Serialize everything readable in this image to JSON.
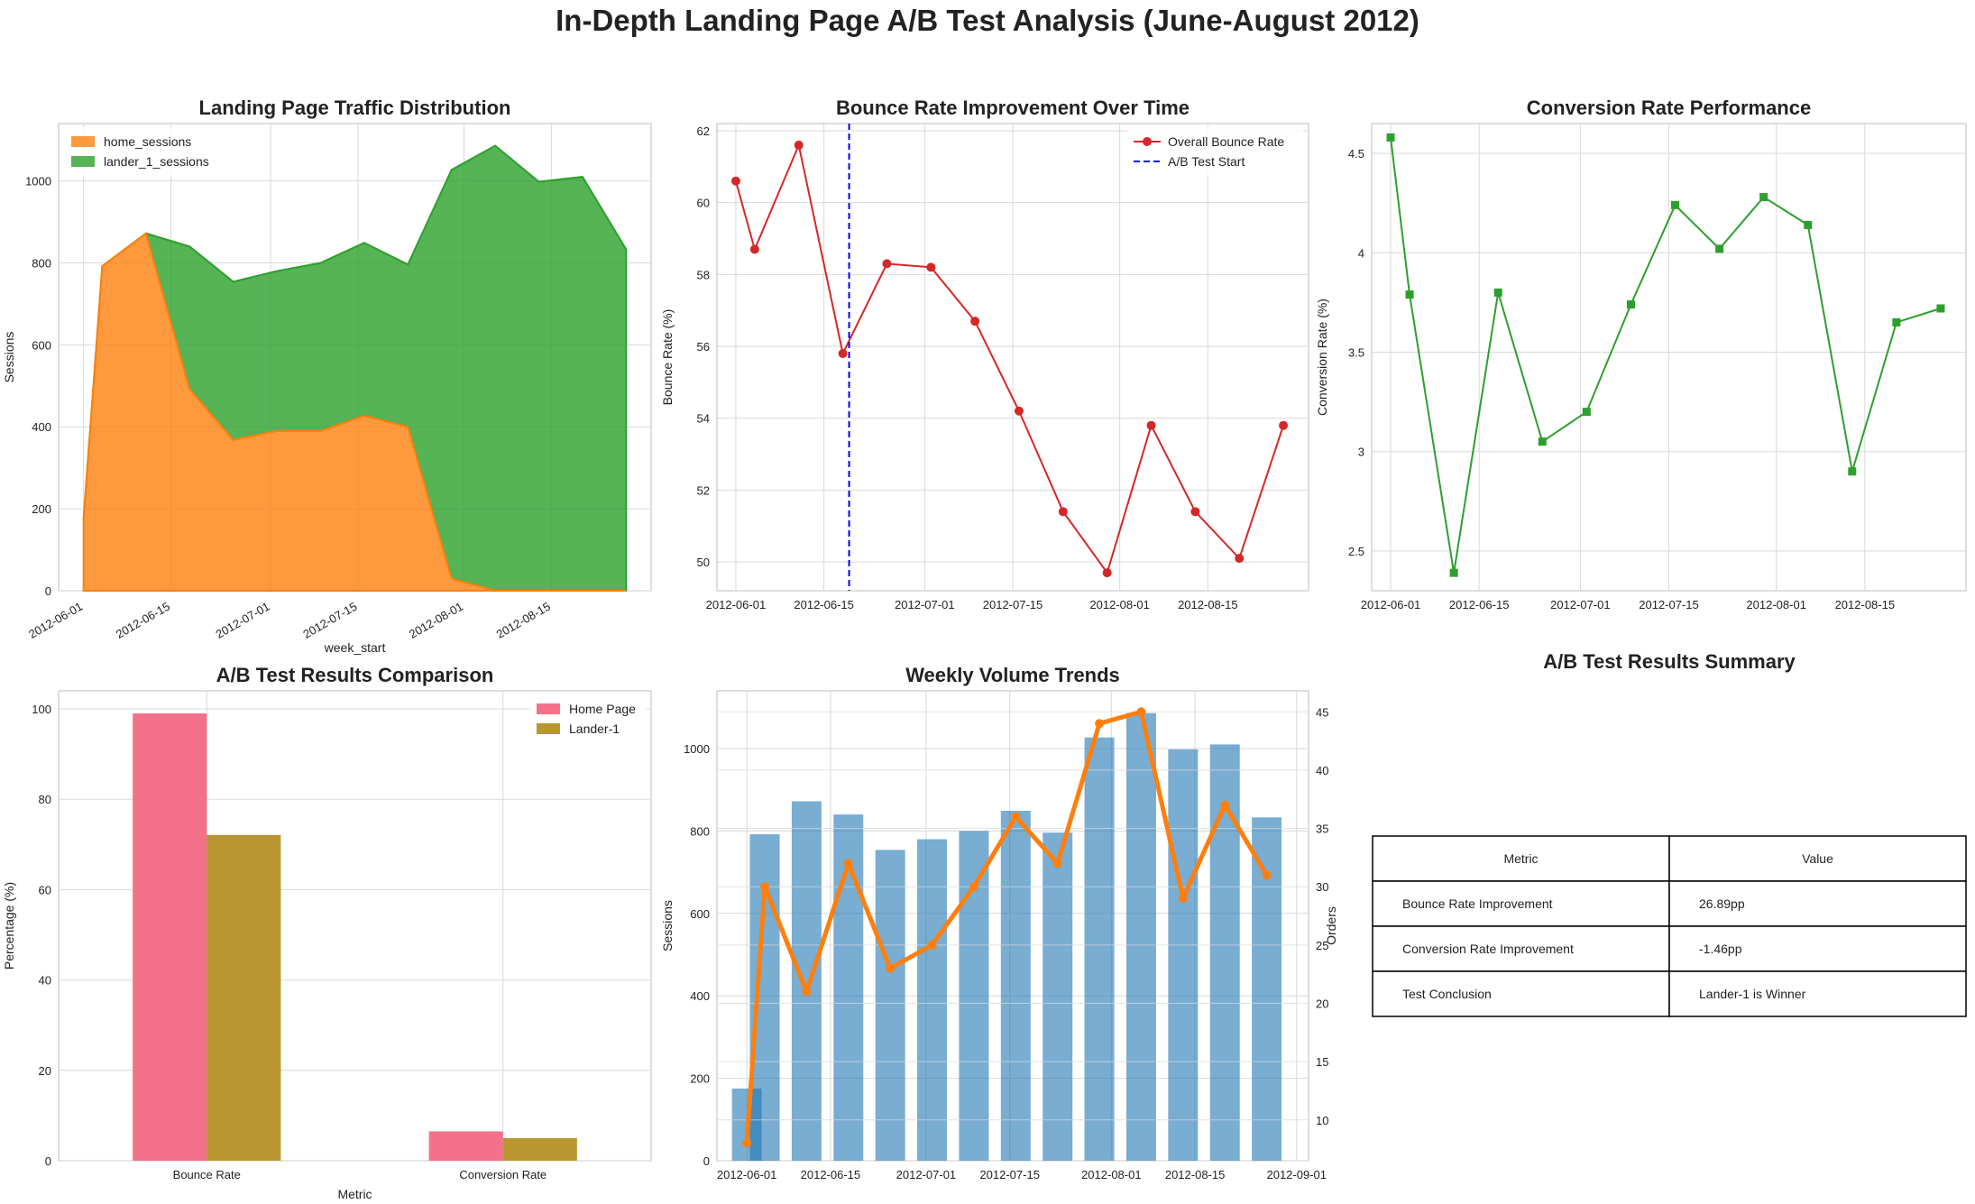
{
  "page": {
    "title": "In-Depth Landing Page A/B Test Analysis (June-August 2012)"
  },
  "colors": {
    "home": "#ff7f0e",
    "lander": "#2ca02c",
    "bounce_line": "#d62728",
    "ab_start": "#0000ff",
    "conversion_line": "#2ca02c",
    "home_bar": "#f3728a",
    "lander_bar": "#b9962f",
    "sessions_bar": "#1f77b4",
    "orders_line": "#ff7f0e",
    "grid": "#d9d9d9",
    "axis": "#c8c8c8"
  },
  "chart_data": [
    {
      "id": "traffic",
      "type": "area",
      "title": "Landing Page Traffic Distribution",
      "xlabel": "week_start",
      "ylabel": "Sessions",
      "stacked": true,
      "legend_position": "top-left",
      "grid": true,
      "x": [
        "2012-06-01",
        "2012-06-04",
        "2012-06-11",
        "2012-06-18",
        "2012-06-25",
        "2012-07-02",
        "2012-07-09",
        "2012-07-16",
        "2012-07-23",
        "2012-07-30",
        "2012-08-06",
        "2012-08-13",
        "2012-08-20",
        "2012-08-27"
      ],
      "series": [
        {
          "name": "home_sessions",
          "values": [
            175,
            792,
            872,
            492,
            368,
            390,
            390,
            427,
            400,
            30,
            0,
            0,
            0,
            0
          ]
        },
        {
          "name": "lander_1_sessions",
          "values": [
            0,
            0,
            0,
            348,
            386,
            390,
            410,
            422,
            396,
            997,
            1086,
            998,
            1010,
            833
          ]
        }
      ],
      "xticks": [
        "2012-06-01",
        "2012-06-15",
        "2012-07-01",
        "2012-07-15",
        "2012-08-01",
        "2012-08-15"
      ],
      "yticks": [
        0,
        200,
        400,
        600,
        800,
        1000
      ],
      "ylim": [
        0,
        1140
      ]
    },
    {
      "id": "bounce",
      "type": "line",
      "title": "Bounce Rate Improvement Over Time",
      "ylabel": "Bounce Rate (%)",
      "legend_position": "top-right",
      "grid": true,
      "x": [
        "2012-06-01",
        "2012-06-04",
        "2012-06-11",
        "2012-06-18",
        "2012-06-25",
        "2012-07-02",
        "2012-07-09",
        "2012-07-16",
        "2012-07-23",
        "2012-07-30",
        "2012-08-06",
        "2012-08-13",
        "2012-08-20",
        "2012-08-27"
      ],
      "series": [
        {
          "name": "Overall Bounce Rate",
          "values": [
            60.6,
            58.7,
            61.6,
            55.8,
            58.3,
            58.2,
            56.7,
            54.2,
            51.4,
            49.7,
            53.8,
            51.4,
            50.1,
            53.8
          ]
        }
      ],
      "vline": {
        "label": "A/B Test Start",
        "x": "2012-06-19"
      },
      "xticks": [
        "2012-06-01",
        "2012-06-15",
        "2012-07-01",
        "2012-07-15",
        "2012-08-01",
        "2012-08-15"
      ],
      "yticks": [
        50,
        52,
        54,
        56,
        58,
        60,
        62
      ],
      "ylim": [
        49.2,
        62.2
      ]
    },
    {
      "id": "conversion",
      "type": "line",
      "title": "Conversion Rate Performance",
      "ylabel": "Conversion Rate (%)",
      "grid": true,
      "x": [
        "2012-06-01",
        "2012-06-04",
        "2012-06-11",
        "2012-06-18",
        "2012-06-25",
        "2012-07-02",
        "2012-07-09",
        "2012-07-16",
        "2012-07-23",
        "2012-07-30",
        "2012-08-06",
        "2012-08-13",
        "2012-08-20",
        "2012-08-27"
      ],
      "series": [
        {
          "name": "",
          "values": [
            4.58,
            3.79,
            2.39,
            3.8,
            3.05,
            3.2,
            3.74,
            4.24,
            4.02,
            4.28,
            4.14,
            2.9,
            3.65,
            3.72
          ]
        }
      ],
      "xticks": [
        "2012-06-01",
        "2012-06-15",
        "2012-07-01",
        "2012-07-15",
        "2012-08-01",
        "2012-08-15"
      ],
      "yticks": [
        2.5,
        3.0,
        3.5,
        4.0,
        4.5
      ],
      "ylim": [
        2.3,
        4.65
      ]
    },
    {
      "id": "abcompare",
      "type": "bar",
      "title": "A/B Test Results Comparison",
      "xlabel": "Metric",
      "ylabel": "Percentage (%)",
      "legend_position": "top-right",
      "grid": true,
      "categories": [
        "Bounce Rate",
        "Conversion Rate"
      ],
      "series": [
        {
          "name": "Home Page",
          "values": [
            99.0,
            6.5
          ]
        },
        {
          "name": "Lander-1",
          "values": [
            72.1,
            5.0
          ]
        }
      ],
      "yticks": [
        0,
        20,
        40,
        60,
        80,
        100
      ],
      "ylim": [
        0,
        104
      ]
    },
    {
      "id": "volume",
      "type": "bar",
      "title": "Weekly Volume Trends",
      "ylabel": "Sessions",
      "y2label": "Orders",
      "grid": true,
      "x": [
        "2012-06-01",
        "2012-06-04",
        "2012-06-11",
        "2012-06-18",
        "2012-06-25",
        "2012-07-02",
        "2012-07-09",
        "2012-07-16",
        "2012-07-23",
        "2012-07-30",
        "2012-08-06",
        "2012-08-13",
        "2012-08-20",
        "2012-08-27"
      ],
      "series": [
        {
          "name": "",
          "axis": "left",
          "kind": "bar",
          "values": [
            175,
            792,
            872,
            840,
            754,
            780,
            800,
            849,
            796,
            1027,
            1086,
            998,
            1010,
            833
          ]
        },
        {
          "name": "",
          "axis": "right",
          "kind": "line",
          "values": [
            8,
            30,
            21,
            32,
            23,
            25,
            30,
            36,
            32,
            44,
            45,
            29,
            37,
            31
          ]
        }
      ],
      "xticks": [
        "2012-06-01",
        "2012-06-15",
        "2012-07-01",
        "2012-07-15",
        "2012-08-01",
        "2012-08-15",
        "2012-09-01"
      ],
      "yticks": [
        0,
        200,
        400,
        600,
        800,
        1000
      ],
      "y2ticks": [
        10,
        15,
        20,
        25,
        30,
        35,
        40,
        45
      ],
      "ylim": [
        0,
        1140
      ],
      "y2lim": [
        6.5,
        46.8
      ]
    },
    {
      "id": "summary",
      "type": "table",
      "title": "A/B Test Results Summary",
      "columns": [
        "Metric",
        "Value"
      ],
      "rows": [
        [
          "Bounce Rate Improvement",
          "26.89pp"
        ],
        [
          "Conversion Rate Improvement",
          "-1.46pp"
        ],
        [
          "Test Conclusion",
          "Lander-1 is Winner"
        ]
      ]
    }
  ]
}
